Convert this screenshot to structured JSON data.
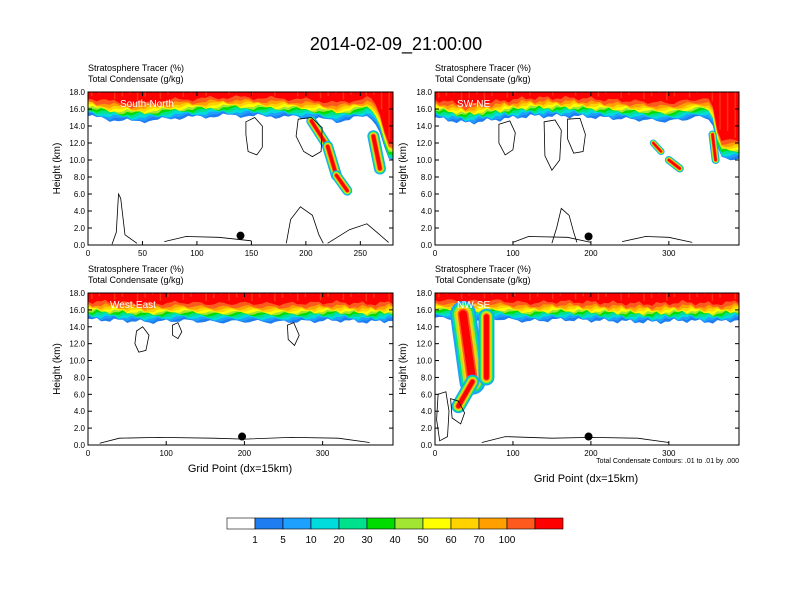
{
  "title": "2014-02-09_21:00:00",
  "footnote": "Total Condensate Contours: .01 to .01 by .000",
  "colors": [
    "#ffffff",
    "#1e7df0",
    "#1ea0ff",
    "#00dcdc",
    "#00e18c",
    "#00dc00",
    "#a0e632",
    "#ffff00",
    "#ffd200",
    "#ffa000",
    "#ff5a1e",
    "#ff0000"
  ],
  "colorbar": {
    "labels": [
      "1",
      "5",
      "10",
      "20",
      "30",
      "40",
      "50",
      "60",
      "70",
      "100"
    ]
  },
  "chart_data": [
    {
      "type": "heatmap",
      "label": "South-North",
      "title_left1": "Stratosphere Tracer   (%)",
      "title_left2": "Total Condensate   (g/kg)",
      "ylabel": "Height (km)",
      "xlabel": "",
      "xlim": [
        0,
        280
      ],
      "ylim": [
        0,
        18
      ],
      "xticks": [
        {
          "v": 0,
          "t": "0"
        },
        {
          "v": 50,
          "t": "50"
        },
        {
          "v": 100,
          "t": "100"
        },
        {
          "v": 150,
          "t": "150"
        },
        {
          "v": 200,
          "t": "200"
        },
        {
          "v": 250,
          "t": "250"
        }
      ],
      "yticks": [
        {
          "v": 0,
          "t": "0.0"
        },
        {
          "v": 2,
          "t": "2.0"
        },
        {
          "v": 4,
          "t": "4.0"
        },
        {
          "v": 6,
          "t": "6.0"
        },
        {
          "v": 8,
          "t": "8.0"
        },
        {
          "v": 10,
          "t": "10.0"
        },
        {
          "v": 12,
          "t": "12.0"
        },
        {
          "v": 14,
          "t": "14.0"
        },
        {
          "v": 16,
          "t": "16.0"
        },
        {
          "v": 18,
          "t": "18.0"
        }
      ],
      "marker": [
        140,
        1.1
      ],
      "tropopause": [
        [
          0,
          15.6
        ],
        [
          20,
          15.2
        ],
        [
          40,
          15.0
        ],
        [
          60,
          15.1
        ],
        [
          80,
          15.4
        ],
        [
          100,
          15.5
        ],
        [
          130,
          15.7
        ],
        [
          160,
          15.6
        ],
        [
          190,
          15.5
        ],
        [
          210,
          15.3
        ],
        [
          230,
          15.0
        ],
        [
          255,
          15.6
        ],
        [
          262,
          15.4
        ],
        [
          270,
          13.0
        ],
        [
          275,
          10.5
        ],
        [
          280,
          10.2
        ]
      ],
      "intrusions": [
        {
          "x0": 205,
          "y0": 14.6,
          "x1": 220,
          "y1": 11.6,
          "w": 10
        },
        {
          "x0": 220,
          "y0": 11.6,
          "x1": 228,
          "y1": 8.2,
          "w": 11
        },
        {
          "x0": 228,
          "y0": 8.2,
          "x1": 238,
          "y1": 6.4,
          "w": 10
        },
        {
          "x0": 262,
          "y0": 12.8,
          "x1": 268,
          "y1": 9.0,
          "w": 12
        }
      ],
      "clouds": [
        [
          [
            145,
            14.5
          ],
          [
            153,
            15.0
          ],
          [
            160,
            14.0
          ],
          [
            160,
            11.5
          ],
          [
            155,
            10.6
          ],
          [
            147,
            11.0
          ],
          [
            145,
            13.0
          ]
        ],
        [
          [
            193,
            14.8
          ],
          [
            205,
            15.0
          ],
          [
            215,
            13.8
          ],
          [
            214,
            11.0
          ],
          [
            206,
            10.4
          ],
          [
            198,
            11.0
          ],
          [
            191,
            12.8
          ]
        ],
        [
          [
            22,
            0.1
          ],
          [
            26,
            1.5
          ],
          [
            28,
            6.0
          ],
          [
            30,
            5.5
          ],
          [
            34,
            1.2
          ],
          [
            45,
            0.2
          ]
        ],
        [
          [
            182,
            0.2
          ],
          [
            186,
            3.0
          ],
          [
            195,
            4.5
          ],
          [
            206,
            3.5
          ],
          [
            212,
            1.2
          ],
          [
            216,
            0.2
          ]
        ],
        [
          [
            70,
            0.4
          ],
          [
            90,
            1.0
          ],
          [
            120,
            0.9
          ],
          [
            150,
            0.5
          ]
        ],
        [
          [
            220,
            0.2
          ],
          [
            240,
            1.8
          ],
          [
            256,
            2.5
          ],
          [
            266,
            1.4
          ],
          [
            276,
            0.3
          ]
        ]
      ]
    },
    {
      "type": "heatmap",
      "label": "SW-NE",
      "title_left1": "Stratosphere Tracer   (%)",
      "title_left2": "Total Condensate   (g/kg)",
      "ylabel": "Height (km)",
      "xlabel": "",
      "xlim": [
        0,
        390
      ],
      "ylim": [
        0,
        18
      ],
      "xticks": [
        {
          "v": 0,
          "t": "0"
        },
        {
          "v": 100,
          "t": "100"
        },
        {
          "v": 200,
          "t": "200"
        },
        {
          "v": 300,
          "t": "300"
        }
      ],
      "yticks": [
        {
          "v": 0,
          "t": "0.0"
        },
        {
          "v": 2,
          "t": "2.0"
        },
        {
          "v": 4,
          "t": "4.0"
        },
        {
          "v": 6,
          "t": "6.0"
        },
        {
          "v": 8,
          "t": "8.0"
        },
        {
          "v": 10,
          "t": "10.0"
        },
        {
          "v": 12,
          "t": "12.0"
        },
        {
          "v": 14,
          "t": "14.0"
        },
        {
          "v": 16,
          "t": "16.0"
        },
        {
          "v": 18,
          "t": "18.0"
        }
      ],
      "marker": [
        197,
        1.0
      ],
      "tropopause": [
        [
          0,
          15.4
        ],
        [
          40,
          14.8
        ],
        [
          80,
          15.2
        ],
        [
          120,
          15.6
        ],
        [
          180,
          15.6
        ],
        [
          240,
          15.3
        ],
        [
          300,
          15.0
        ],
        [
          340,
          15.5
        ],
        [
          355,
          15.3
        ],
        [
          362,
          12.0
        ],
        [
          368,
          10.6
        ],
        [
          390,
          10.6
        ]
      ],
      "intrusions": [
        {
          "x0": 280,
          "y0": 12.0,
          "x1": 290,
          "y1": 11.0,
          "w": 7
        },
        {
          "x0": 300,
          "y0": 10.0,
          "x1": 314,
          "y1": 9.0,
          "w": 8
        },
        {
          "x0": 356,
          "y0": 13.0,
          "x1": 360,
          "y1": 10.0,
          "w": 8
        }
      ],
      "clouds": [
        [
          [
            82,
            14.2
          ],
          [
            96,
            14.6
          ],
          [
            103,
            13.2
          ],
          [
            100,
            11.2
          ],
          [
            90,
            10.6
          ],
          [
            82,
            12.0
          ]
        ],
        [
          [
            140,
            14.5
          ],
          [
            154,
            14.7
          ],
          [
            162,
            13.5
          ],
          [
            160,
            10.0
          ],
          [
            150,
            8.8
          ],
          [
            141,
            10.5
          ]
        ],
        [
          [
            170,
            14.8
          ],
          [
            186,
            14.9
          ],
          [
            193,
            13.0
          ],
          [
            190,
            11.0
          ],
          [
            178,
            10.8
          ],
          [
            170,
            12.5
          ]
        ],
        [
          [
            100,
            0.3
          ],
          [
            120,
            1.0
          ],
          [
            170,
            0.9
          ],
          [
            200,
            0.3
          ]
        ],
        [
          [
            150,
            0.2
          ],
          [
            156,
            2.0
          ],
          [
            162,
            4.3
          ],
          [
            172,
            3.5
          ],
          [
            178,
            1.5
          ],
          [
            182,
            0.3
          ]
        ],
        [
          [
            240,
            0.4
          ],
          [
            270,
            1.0
          ],
          [
            300,
            0.9
          ],
          [
            330,
            0.3
          ]
        ]
      ]
    },
    {
      "type": "heatmap",
      "label": "West-East",
      "title_left1": "Stratosphere Tracer   (%)",
      "title_left2": "Total Condensate   (g/kg)",
      "ylabel": "Height (km)",
      "xlabel": "Grid Point (dx=15km)",
      "xlim": [
        0,
        390
      ],
      "ylim": [
        0,
        18
      ],
      "xticks": [
        {
          "v": 0,
          "t": "0"
        },
        {
          "v": 100,
          "t": "100"
        },
        {
          "v": 200,
          "t": "200"
        },
        {
          "v": 300,
          "t": "300"
        }
      ],
      "yticks": [
        {
          "v": 0,
          "t": "0.0"
        },
        {
          "v": 2,
          "t": "2.0"
        },
        {
          "v": 4,
          "t": "4.0"
        },
        {
          "v": 6,
          "t": "6.0"
        },
        {
          "v": 8,
          "t": "8.0"
        },
        {
          "v": 10,
          "t": "10.0"
        },
        {
          "v": 12,
          "t": "12.0"
        },
        {
          "v": 14,
          "t": "14.0"
        },
        {
          "v": 16,
          "t": "16.0"
        },
        {
          "v": 18,
          "t": "18.0"
        }
      ],
      "marker": [
        197,
        1.0
      ],
      "tropopause": [
        [
          0,
          15.3
        ],
        [
          40,
          15.2
        ],
        [
          80,
          15.0
        ],
        [
          120,
          15.2
        ],
        [
          160,
          15.0
        ],
        [
          200,
          15.1
        ],
        [
          240,
          15.0
        ],
        [
          280,
          15.1
        ],
        [
          320,
          15.2
        ],
        [
          360,
          15.0
        ],
        [
          390,
          15.2
        ]
      ],
      "intrusions": [],
      "clouds": [
        [
          [
            62,
            13.5
          ],
          [
            70,
            14.0
          ],
          [
            78,
            13.0
          ],
          [
            74,
            11.2
          ],
          [
            65,
            11.0
          ],
          [
            60,
            12.0
          ]
        ],
        [
          [
            108,
            14.2
          ],
          [
            115,
            14.5
          ],
          [
            120,
            13.4
          ],
          [
            115,
            12.6
          ],
          [
            108,
            13.0
          ]
        ],
        [
          [
            255,
            14.2
          ],
          [
            263,
            14.5
          ],
          [
            270,
            13.0
          ],
          [
            264,
            11.8
          ],
          [
            256,
            12.5
          ]
        ],
        [
          [
            15,
            0.2
          ],
          [
            40,
            0.8
          ],
          [
            90,
            0.9
          ],
          [
            160,
            0.8
          ],
          [
            200,
            0.7
          ],
          [
            260,
            0.9
          ],
          [
            320,
            0.8
          ],
          [
            360,
            0.3
          ]
        ]
      ]
    },
    {
      "type": "heatmap",
      "label": "NW-SE",
      "title_left1": "Stratosphere Tracer   (%)",
      "title_left2": "Total Condensate   (g/kg)",
      "ylabel": "Height (km)",
      "xlabel": "Grid Point (dx=15km)",
      "xlim": [
        0,
        390
      ],
      "ylim": [
        0,
        18
      ],
      "xticks": [
        {
          "v": 0,
          "t": "0"
        },
        {
          "v": 100,
          "t": "100"
        },
        {
          "v": 200,
          "t": "200"
        },
        {
          "v": 300,
          "t": "300"
        }
      ],
      "yticks": [
        {
          "v": 0,
          "t": "0.0"
        },
        {
          "v": 2,
          "t": "2.0"
        },
        {
          "v": 4,
          "t": "4.0"
        },
        {
          "v": 6,
          "t": "6.0"
        },
        {
          "v": 8,
          "t": "8.0"
        },
        {
          "v": 10,
          "t": "10.0"
        },
        {
          "v": 12,
          "t": "12.0"
        },
        {
          "v": 14,
          "t": "14.0"
        },
        {
          "v": 16,
          "t": "16.0"
        },
        {
          "v": 18,
          "t": "18.0"
        }
      ],
      "marker": [
        197,
        1.0
      ],
      "tropopause": [
        [
          0,
          15.5
        ],
        [
          40,
          15.3
        ],
        [
          80,
          15.4
        ],
        [
          120,
          15.1
        ],
        [
          160,
          15.3
        ],
        [
          200,
          15.2
        ],
        [
          240,
          15.1
        ],
        [
          280,
          15.0
        ],
        [
          320,
          15.2
        ],
        [
          360,
          15.0
        ],
        [
          390,
          15.3
        ]
      ],
      "intrusions": [
        {
          "x0": 36,
          "y0": 15.5,
          "x1": 48,
          "y1": 7.5,
          "w": 26
        },
        {
          "x0": 48,
          "y0": 7.5,
          "x1": 30,
          "y1": 4.6,
          "w": 14
        },
        {
          "x0": 66,
          "y0": 15.2,
          "x1": 66,
          "y1": 8.0,
          "w": 16
        }
      ],
      "clouds": [
        [
          [
            4,
            6.0
          ],
          [
            14,
            6.3
          ],
          [
            18,
            4.0
          ],
          [
            16,
            1.0
          ],
          [
            6,
            0.5
          ],
          [
            2,
            3.0
          ]
        ],
        [
          [
            20,
            5.5
          ],
          [
            30,
            5.2
          ],
          [
            38,
            3.8
          ],
          [
            33,
            2.5
          ],
          [
            22,
            3.2
          ]
        ],
        [
          [
            60,
            0.3
          ],
          [
            90,
            1.0
          ],
          [
            150,
            0.8
          ],
          [
            200,
            0.9
          ],
          [
            260,
            0.8
          ],
          [
            300,
            0.3
          ]
        ]
      ]
    }
  ]
}
